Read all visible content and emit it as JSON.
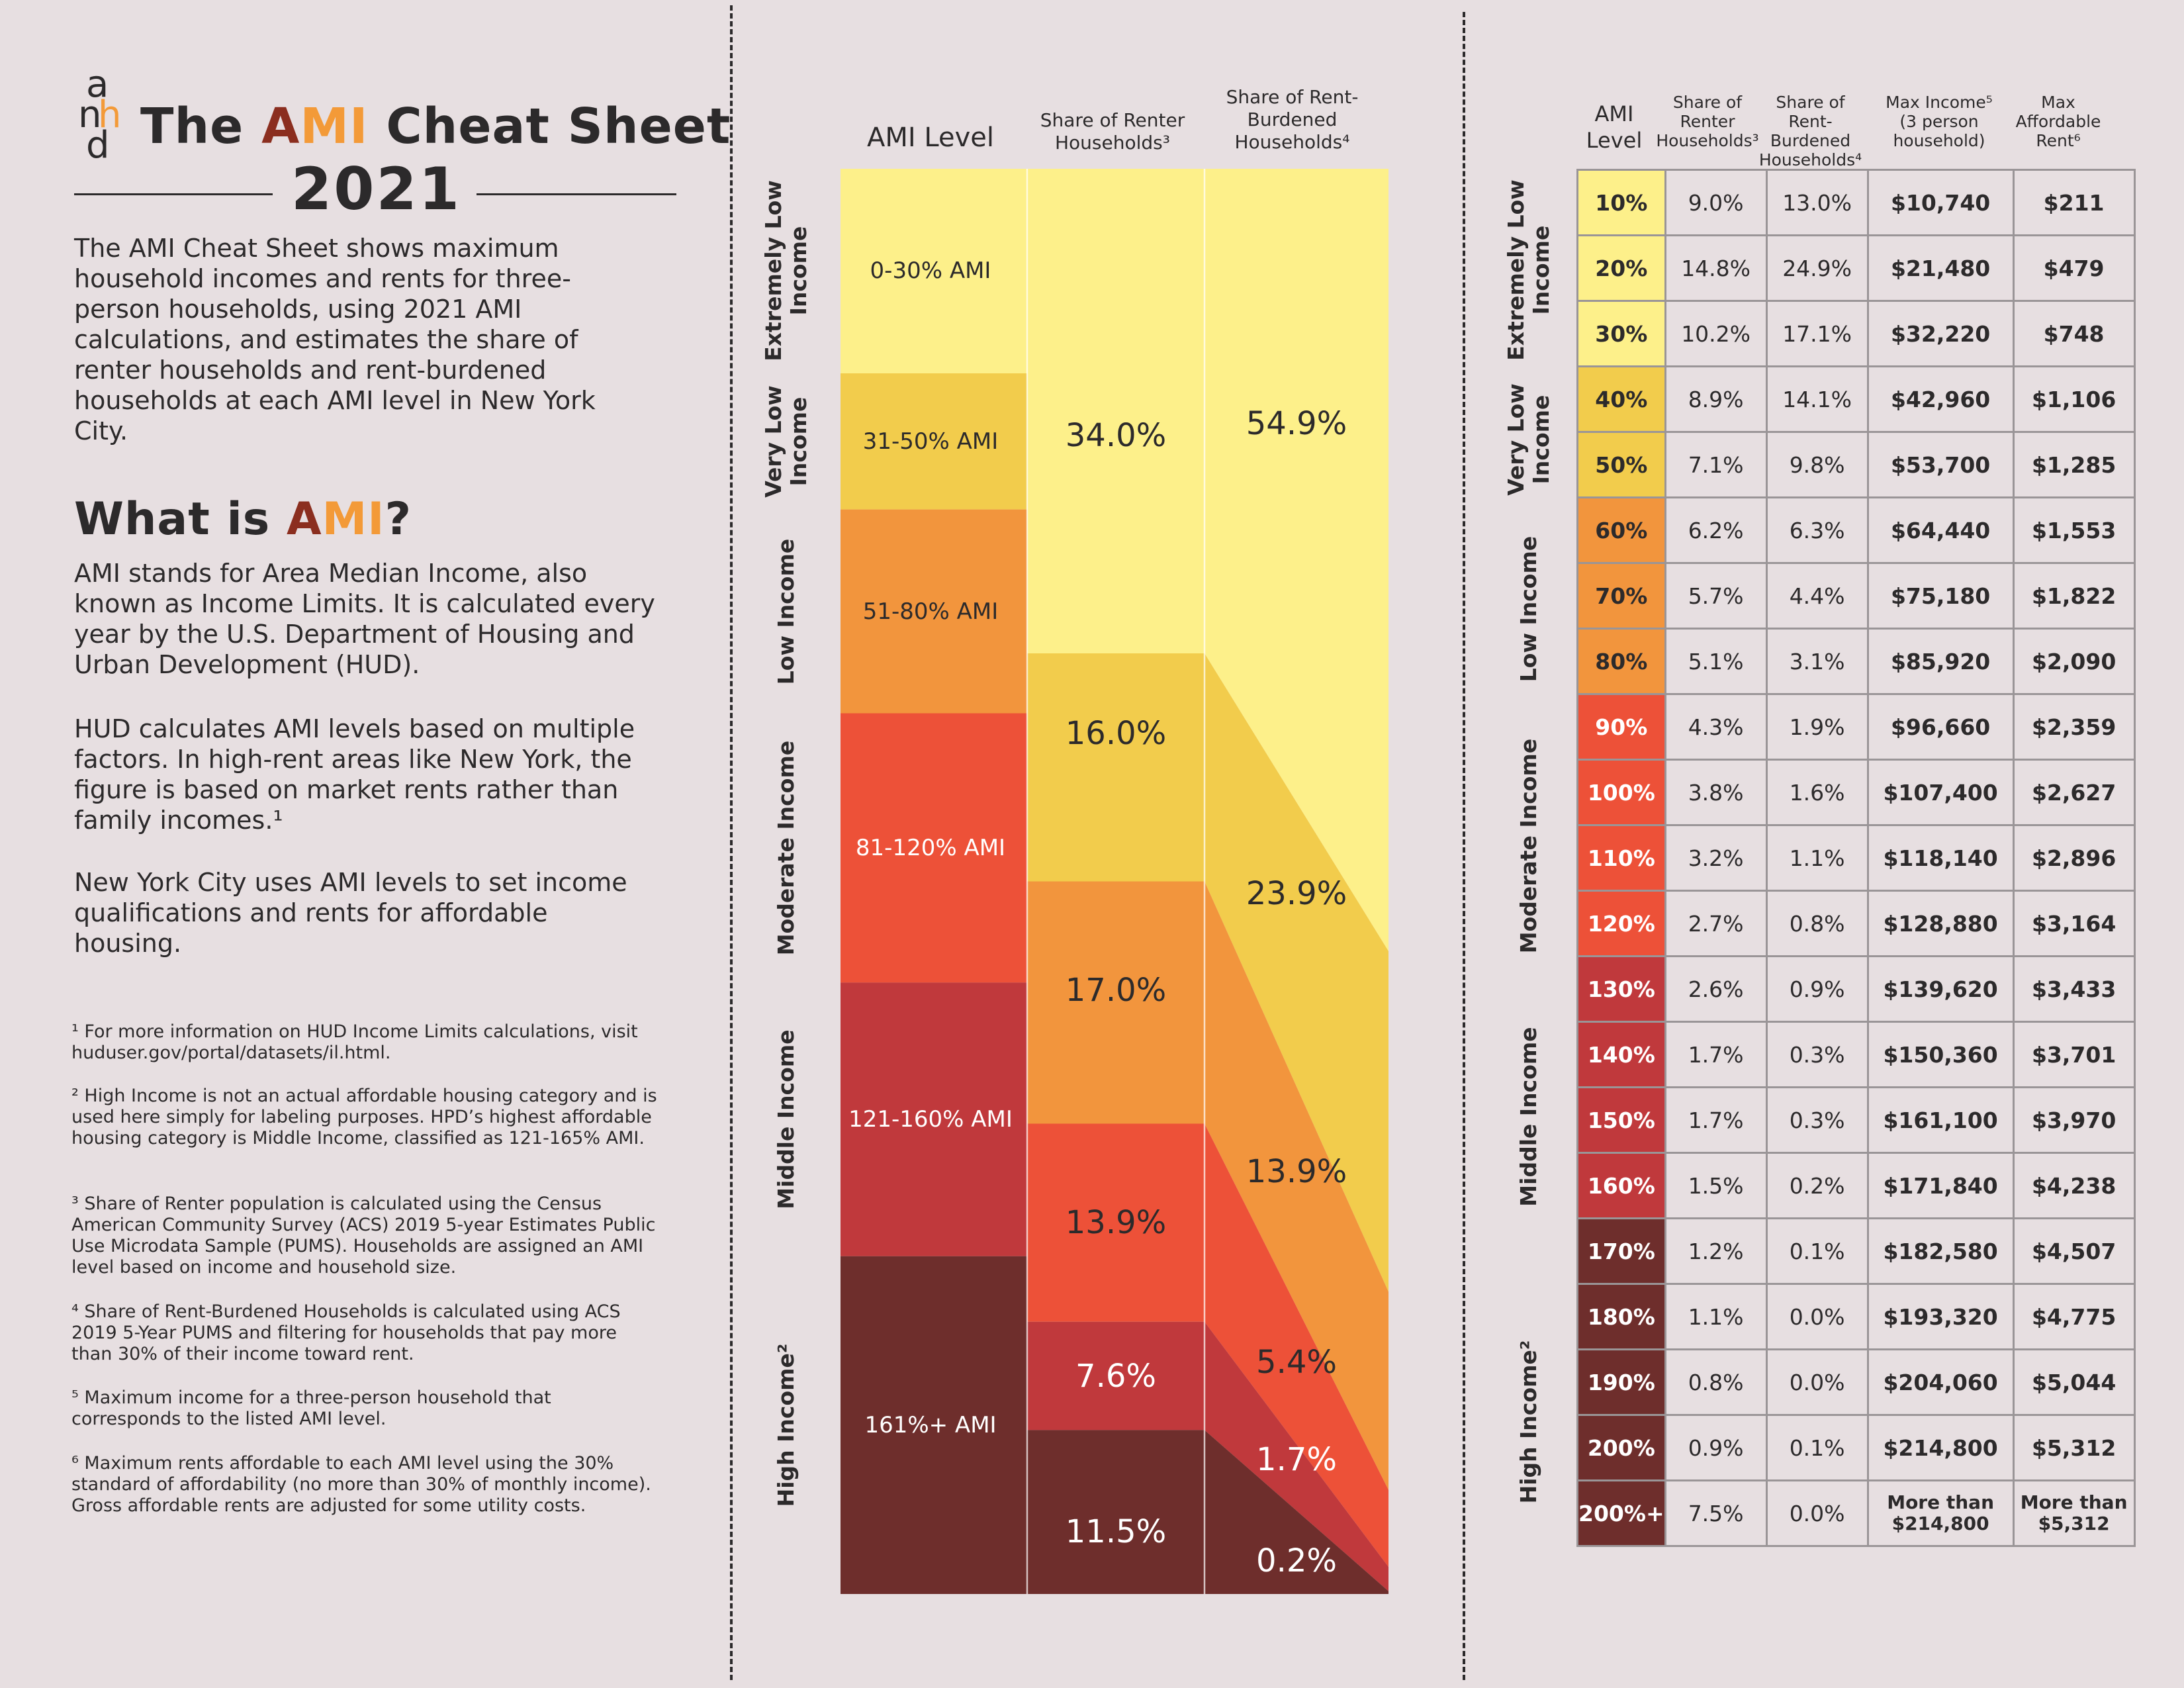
{
  "header": {
    "logo_letters": [
      "a",
      "n",
      "h",
      "d"
    ],
    "title_prefix": "The ",
    "title_ami_a": "A",
    "title_ami_mi": "MI",
    "title_suffix": " Cheat Sheet",
    "year": "2021"
  },
  "intro": "The AMI Cheat Sheet shows maximum household incomes and rents for three-person households, using 2021 AMI calculations, and estimates the share of renter households and rent-burdened households at each AMI level in New York City.",
  "what_is": {
    "title_prefix": "What is ",
    "title_a": "A",
    "title_mi": "MI",
    "title_suffix": "?",
    "p1": "AMI stands for Area Median Income, also known as Income Limits. It is calculated every year by the U.S. Department of Housing and Urban Development (HUD).",
    "p2": "HUD calculates AMI levels based on multiple factors. In high-rent areas like New York, the figure is based on market rents rather than family incomes.¹",
    "p3": "New York City uses AMI levels to set income qualifications and rents for affordable housing."
  },
  "footnotes": [
    "¹ For more information on HUD Income Limits calculations, visit huduser.gov/portal/datasets/il.html.",
    "² High Income is not an actual affordable housing category and is used here simply for labeling purposes. HPD’s highest affordable housing category is Middle Income, classified as 121-165% AMI.",
    "³ Share of Renter population is calculated using the Census American Community Survey (ACS) 2019 5-year Estimates Public Use Microdata Sample (PUMS). Households are assigned an AMI level based on income and household size.",
    "⁴ Share of Rent-Burdened Households is calculated using ACS 2019 5-Year PUMS and filtering for households that pay more than 30% of their income toward rent.",
    "⁵ Maximum income for a three-person household that corresponds to the listed AMI level.",
    "⁶ Maximum rents affordable to each AMI level using the 30% standard of affordability (no more than 30% of monthly income). Gross affordable rents are adjusted for some utility costs."
  ],
  "colors": {
    "extremely_low": "#fdf08a",
    "very_low": "#f2cc4c",
    "low": "#f2953d",
    "moderate": "#ed5138",
    "middle": "#c0393c",
    "high": "#6e2e2c",
    "accent_a": "#8b2e1f",
    "accent_mi": "#f39a38"
  },
  "chart_data": {
    "type": "area",
    "headers": {
      "level": "AMI Level",
      "renter": "Share of Renter Households³",
      "burdened": "Share of Rent-Burdened Households⁴"
    },
    "categories": [
      {
        "group": "Extremely Low Income",
        "range": "0-30% AMI",
        "renter": 34.0,
        "burdened": 54.9,
        "color": "#fdf08a"
      },
      {
        "group": "Very Low Income",
        "range": "31-50% AMI",
        "renter": 16.0,
        "burdened": 23.9,
        "color": "#f2cc4c"
      },
      {
        "group": "Low Income",
        "range": "51-80% AMI",
        "renter": 17.0,
        "burdened": 13.9,
        "color": "#f2953d"
      },
      {
        "group": "Moderate Income",
        "range": "81-120% AMI",
        "renter": 13.9,
        "burdened": 5.4,
        "color": "#ed5138"
      },
      {
        "group": "Middle Income",
        "range": "121-160% AMI",
        "renter": 7.6,
        "burdened": 1.7,
        "color": "#c0393c"
      },
      {
        "group": "High Income²",
        "range": "161%+ AMI",
        "renter": 11.5,
        "burdened": 0.2,
        "color": "#6e2e2c"
      }
    ],
    "renter_labels": [
      "34.0%",
      "16.0%",
      "17.0%",
      "13.9%",
      "7.6%",
      "11.5%"
    ],
    "burdened_labels": [
      "54.9%",
      "23.9%",
      "13.9%",
      "5.4%",
      "1.7%",
      "0.2%"
    ]
  },
  "table": {
    "headers": [
      "AMI Level",
      "Share of Renter Households³",
      "Share of Rent-Burdened Households⁴",
      "Max Income⁵ (3 person household)",
      "Max Affordable Rent⁶"
    ],
    "groups": [
      "Extremely Low Income",
      "Very Low Income",
      "Low Income",
      "Moderate Income",
      "Middle Income",
      "High Income²"
    ],
    "rows": [
      {
        "level": "10%",
        "renter": "9.0%",
        "burdened": "13.0%",
        "income": "$10,740",
        "rent": "$211",
        "group": 0
      },
      {
        "level": "20%",
        "renter": "14.8%",
        "burdened": "24.9%",
        "income": "$21,480",
        "rent": "$479",
        "group": 0
      },
      {
        "level": "30%",
        "renter": "10.2%",
        "burdened": "17.1%",
        "income": "$32,220",
        "rent": "$748",
        "group": 0
      },
      {
        "level": "40%",
        "renter": "8.9%",
        "burdened": "14.1%",
        "income": "$42,960",
        "rent": "$1,106",
        "group": 1
      },
      {
        "level": "50%",
        "renter": "7.1%",
        "burdened": "9.8%",
        "income": "$53,700",
        "rent": "$1,285",
        "group": 1
      },
      {
        "level": "60%",
        "renter": "6.2%",
        "burdened": "6.3%",
        "income": "$64,440",
        "rent": "$1,553",
        "group": 2
      },
      {
        "level": "70%",
        "renter": "5.7%",
        "burdened": "4.4%",
        "income": "$75,180",
        "rent": "$1,822",
        "group": 2
      },
      {
        "level": "80%",
        "renter": "5.1%",
        "burdened": "3.1%",
        "income": "$85,920",
        "rent": "$2,090",
        "group": 2
      },
      {
        "level": "90%",
        "renter": "4.3%",
        "burdened": "1.9%",
        "income": "$96,660",
        "rent": "$2,359",
        "group": 3
      },
      {
        "level": "100%",
        "renter": "3.8%",
        "burdened": "1.6%",
        "income": "$107,400",
        "rent": "$2,627",
        "group": 3
      },
      {
        "level": "110%",
        "renter": "3.2%",
        "burdened": "1.1%",
        "income": "$118,140",
        "rent": "$2,896",
        "group": 3
      },
      {
        "level": "120%",
        "renter": "2.7%",
        "burdened": "0.8%",
        "income": "$128,880",
        "rent": "$3,164",
        "group": 3
      },
      {
        "level": "130%",
        "renter": "2.6%",
        "burdened": "0.9%",
        "income": "$139,620",
        "rent": "$3,433",
        "group": 4
      },
      {
        "level": "140%",
        "renter": "1.7%",
        "burdened": "0.3%",
        "income": "$150,360",
        "rent": "$3,701",
        "group": 4
      },
      {
        "level": "150%",
        "renter": "1.7%",
        "burdened": "0.3%",
        "income": "$161,100",
        "rent": "$3,970",
        "group": 4
      },
      {
        "level": "160%",
        "renter": "1.5%",
        "burdened": "0.2%",
        "income": "$171,840",
        "rent": "$4,238",
        "group": 4
      },
      {
        "level": "170%",
        "renter": "1.2%",
        "burdened": "0.1%",
        "income": "$182,580",
        "rent": "$4,507",
        "group": 5
      },
      {
        "level": "180%",
        "renter": "1.1%",
        "burdened": "0.0%",
        "income": "$193,320",
        "rent": "$4,775",
        "group": 5
      },
      {
        "level": "190%",
        "renter": "0.8%",
        "burdened": "0.0%",
        "income": "$204,060",
        "rent": "$5,044",
        "group": 5
      },
      {
        "level": "200%",
        "renter": "0.9%",
        "burdened": "0.1%",
        "income": "$214,800",
        "rent": "$5,312",
        "group": 5
      },
      {
        "level": "200%+",
        "renter": "7.5%",
        "burdened": "0.0%",
        "income": "More than $214,800",
        "rent": "More than $5,312",
        "group": 5
      }
    ]
  }
}
